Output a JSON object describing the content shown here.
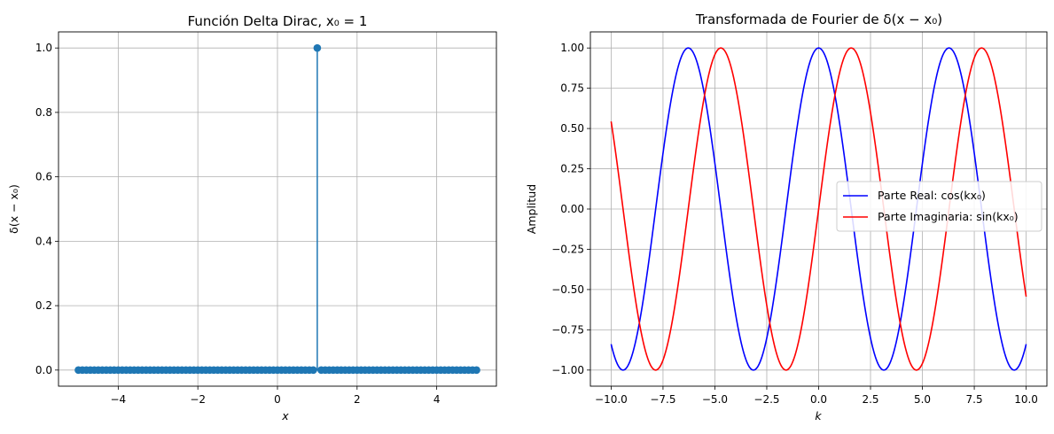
{
  "chart_data": [
    {
      "type": "stem",
      "title": "Función Delta Dirac, x₀ = 1",
      "xlabel": "x",
      "ylabel": "δ(x − x₀)",
      "xlim": [
        -5.5,
        5.5
      ],
      "ylim": [
        -0.05,
        1.05
      ],
      "xticks": [
        -4,
        -2,
        0,
        2,
        4
      ],
      "xtick_labels": [
        "−4",
        "−2",
        "0",
        "2",
        "4"
      ],
      "yticks": [
        0.0,
        0.2,
        0.4,
        0.6,
        0.8,
        1.0
      ],
      "ytick_labels": [
        "0.0",
        "0.2",
        "0.4",
        "0.6",
        "0.8",
        "1.0"
      ],
      "grid": true,
      "color": "#1f77b4",
      "series": [
        {
          "x_start": -5,
          "x_end": 5,
          "num_points": 101,
          "impulse_x": 1,
          "impulse_value": 1.0,
          "baseline_value": 0.0
        }
      ]
    },
    {
      "type": "line",
      "title": "Transformada de Fourier de δ(x − x₀)",
      "xlabel": "k",
      "ylabel": "Amplitud",
      "xlim": [
        -11,
        11
      ],
      "ylim": [
        -1.1,
        1.1
      ],
      "xticks": [
        -10,
        -7.5,
        -5,
        -2.5,
        0,
        2.5,
        5,
        7.5,
        10
      ],
      "xtick_labels": [
        "−10.0",
        "−7.5",
        "−5.0",
        "−2.5",
        "0.0",
        "2.5",
        "5.0",
        "7.5",
        "10.0"
      ],
      "yticks": [
        -1.0,
        -0.75,
        -0.5,
        -0.25,
        0.0,
        0.25,
        0.5,
        0.75,
        1.0
      ],
      "ytick_labels": [
        "−1.00",
        "−0.75",
        "−0.50",
        "−0.25",
        "0.00",
        "0.25",
        "0.50",
        "0.75",
        "1.00"
      ],
      "grid": true,
      "legend_position": "right",
      "x0": 1,
      "k_range": [
        -10,
        10
      ],
      "series": [
        {
          "name": "Parte Real: cos(kx₀)",
          "function": "cos",
          "color": "#0000ff"
        },
        {
          "name": "Parte Imaginaria: sin(kx₀)",
          "function": "sin",
          "color": "#ff0000"
        }
      ]
    }
  ]
}
